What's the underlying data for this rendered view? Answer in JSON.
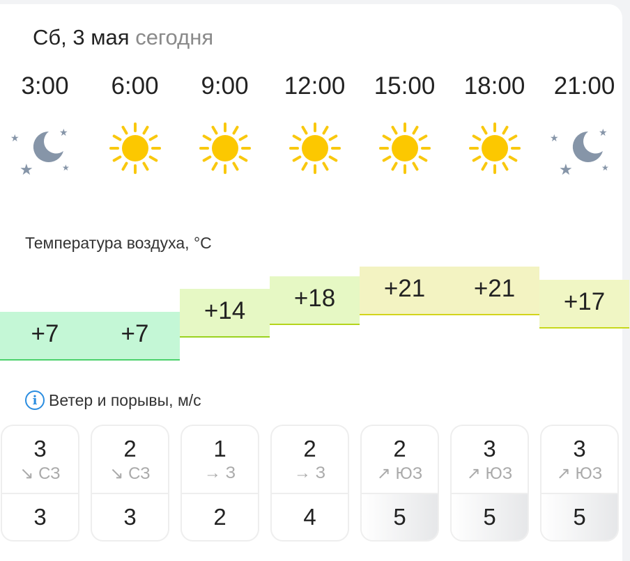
{
  "header": {
    "date": "Сб, 3 мая",
    "today": "сегодня"
  },
  "hours": [
    {
      "time": "3:00",
      "icon": "moon-stars-icon",
      "temp": "+7",
      "wind": "3",
      "dir_arrow": "↘",
      "dir": "СЗ",
      "gust": "3"
    },
    {
      "time": "6:00",
      "icon": "sun-icon",
      "temp": "+7",
      "wind": "2",
      "dir_arrow": "↘",
      "dir": "СЗ",
      "gust": "3"
    },
    {
      "time": "9:00",
      "icon": "sun-icon",
      "temp": "+14",
      "wind": "1",
      "dir_arrow": "→",
      "dir": "З",
      "gust": "2"
    },
    {
      "time": "12:00",
      "icon": "sun-icon",
      "temp": "+18",
      "wind": "2",
      "dir_arrow": "→",
      "dir": "З",
      "gust": "4"
    },
    {
      "time": "15:00",
      "icon": "sun-icon",
      "temp": "+21",
      "wind": "2",
      "dir_arrow": "↗",
      "dir": "ЮЗ",
      "gust": "5"
    },
    {
      "time": "18:00",
      "icon": "sun-icon",
      "temp": "+21",
      "wind": "3",
      "dir_arrow": "↗",
      "dir": "ЮЗ",
      "gust": "5"
    },
    {
      "time": "21:00",
      "icon": "moon-stars-icon",
      "temp": "+17",
      "wind": "3",
      "dir_arrow": "↗",
      "dir": "ЮЗ",
      "gust": "5"
    }
  ],
  "temperature": {
    "label": "Температура воздуха, °C",
    "colors": {
      "cold": "#c4f7d6",
      "mild": "#e6f8c4",
      "warm": "#f3f3c2"
    }
  },
  "wind": {
    "label": "Ветер и порывы, м/с",
    "info_icon": "info-icon"
  }
}
